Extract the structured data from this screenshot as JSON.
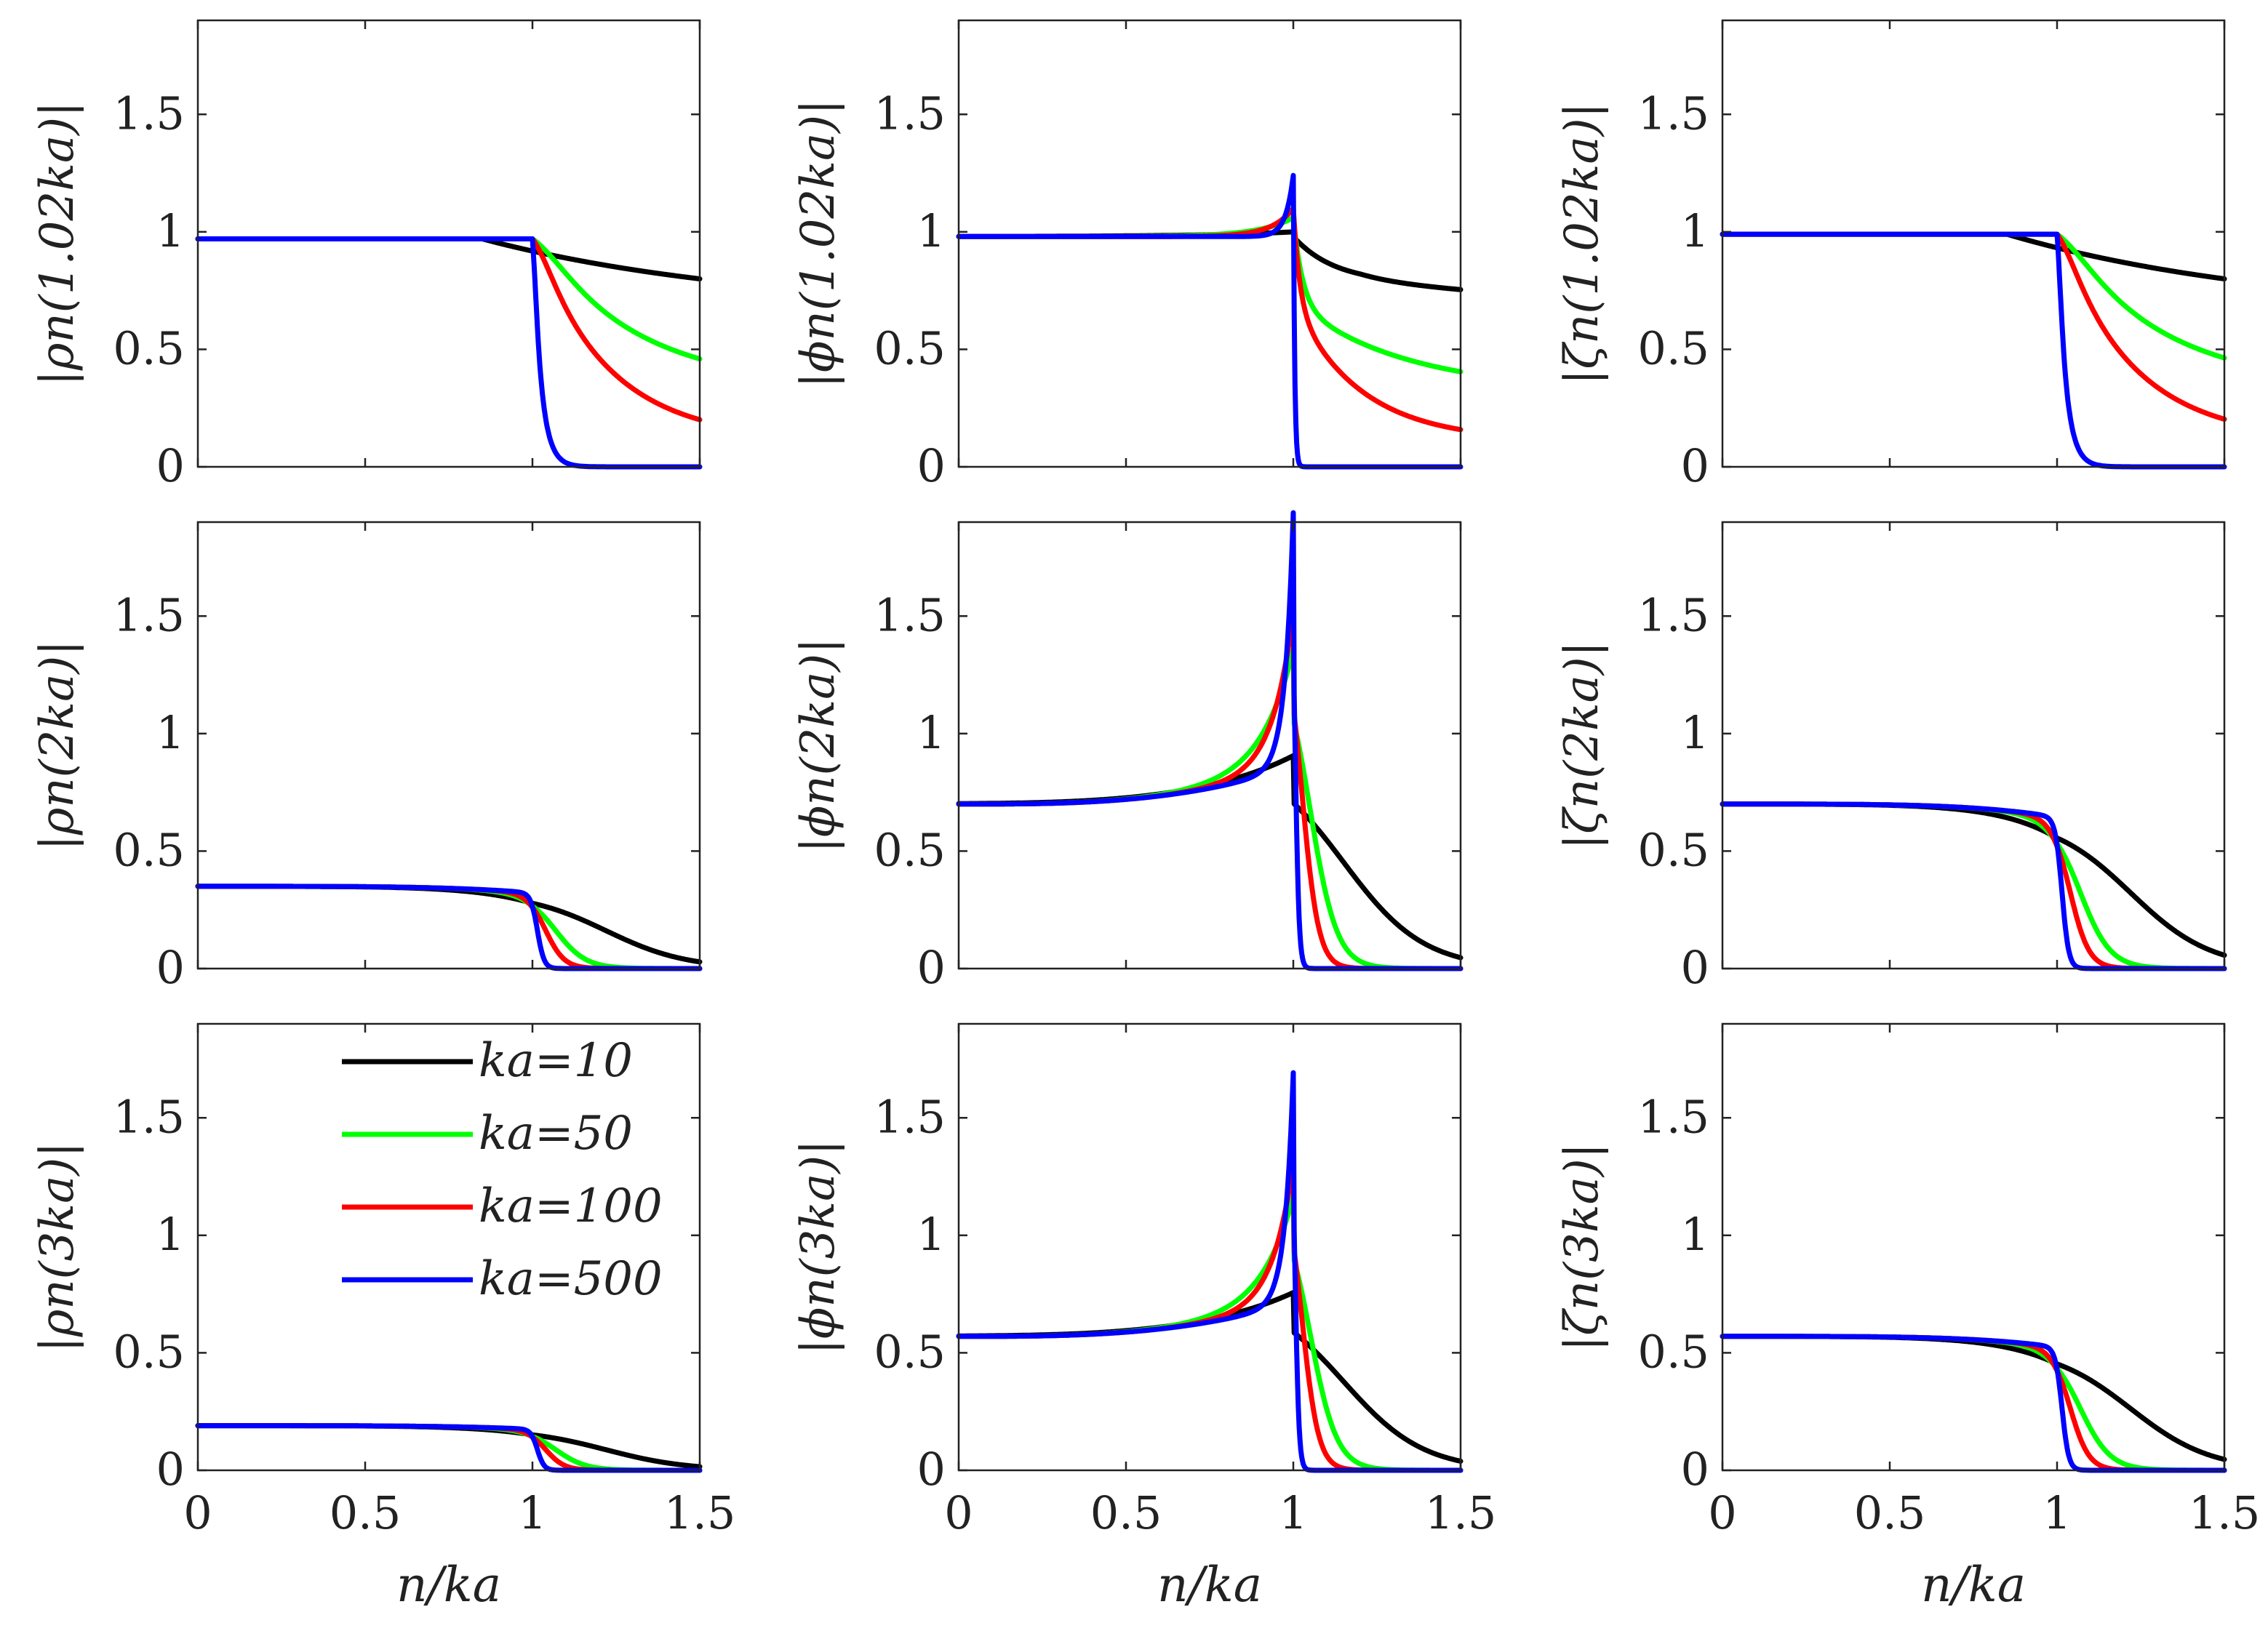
{
  "chart_data": {
    "type": "line",
    "layout": "3x3 grid",
    "x_axis": {
      "label": "n/ka",
      "range": [
        0,
        1.5
      ],
      "ticks": [
        0,
        0.5,
        1,
        1.5
      ],
      "tick_labels": [
        "0",
        "0.5",
        "1",
        "1.5"
      ]
    },
    "y_axis": {
      "range": [
        0,
        1.9
      ],
      "ticks": [
        0,
        0.5,
        1,
        1.5
      ],
      "tick_labels": [
        "0",
        "0.5",
        "1",
        "1.5"
      ]
    },
    "legend": {
      "location": "top-right of bottom-left panel",
      "entries": [
        {
          "label": "ka=10",
          "color": "#000000"
        },
        {
          "label": "ka=50",
          "color": "#00ff00"
        },
        {
          "label": "ka=100",
          "color": "#ff0000"
        },
        {
          "label": "ka=500",
          "color": "#0000ff"
        }
      ]
    },
    "panels": [
      {
        "id": "rho-1.02",
        "ylabel": "|ρn(1.02ka)|",
        "kind": "rho",
        "base": 0.97,
        "amp": 0
      },
      {
        "id": "phi-1.02",
        "ylabel": "|ϕn(1.02ka)|",
        "kind": "phi",
        "base": 0.98,
        "amp": 0.2
      },
      {
        "id": "zeta-1.02",
        "ylabel": "|ζn(1.02ka)|",
        "kind": "zeta",
        "base": 0.99,
        "amp": 0
      },
      {
        "id": "rho-2",
        "ylabel": "|ρn(2ka)|",
        "kind": "rho2",
        "base": 0.35,
        "amp": 0
      },
      {
        "id": "phi-2",
        "ylabel": "|ϕn(2ka)|",
        "kind": "phi2",
        "base": 0.7,
        "amp": 1.05
      },
      {
        "id": "zeta-2",
        "ylabel": "|ζn(2ka)|",
        "kind": "zeta2",
        "base": 0.7,
        "amp": 0
      },
      {
        "id": "rho-3",
        "ylabel": "|ρn(3ka)|",
        "kind": "rho2",
        "base": 0.19,
        "amp": 0
      },
      {
        "id": "phi-3",
        "ylabel": "|ϕn(3ka)|",
        "kind": "phi2",
        "base": 0.57,
        "amp": 0.95
      },
      {
        "id": "zeta-3",
        "ylabel": "|ζn(3ka)|",
        "kind": "zeta2",
        "base": 0.57,
        "amp": 0
      }
    ]
  }
}
